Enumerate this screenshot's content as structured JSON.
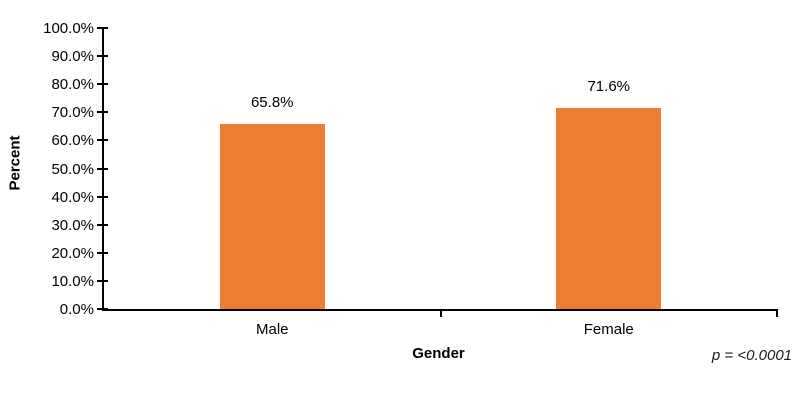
{
  "chart_data": {
    "type": "bar",
    "title": "",
    "categories": [
      "Male",
      "Female"
    ],
    "values": [
      65.8,
      71.6
    ],
    "value_labels": [
      "65.8%",
      "71.6%"
    ],
    "series": [
      {
        "name": "Percent",
        "values": [
          65.8,
          71.6
        ]
      }
    ],
    "xlabel": "Gender",
    "ylabel": "Percent",
    "ylim": [
      0,
      100
    ],
    "yticks": [
      {
        "value": 0,
        "label": "0.0%"
      },
      {
        "value": 10,
        "label": "10.0%"
      },
      {
        "value": 20,
        "label": "20.0%"
      },
      {
        "value": 30,
        "label": "30.0%"
      },
      {
        "value": 40,
        "label": "40.0%"
      },
      {
        "value": 50,
        "label": "50.0%"
      },
      {
        "value": 60,
        "label": "60.0%"
      },
      {
        "value": 70,
        "label": "70.0%"
      },
      {
        "value": 80,
        "label": "80.0%"
      },
      {
        "value": 90,
        "label": "90.0%"
      },
      {
        "value": 100,
        "label": "100.0%"
      }
    ],
    "annotation": "p = <0.0001",
    "bar_color": "#ED7D31",
    "axis_color": "#000000",
    "grid": false,
    "legend": "none"
  }
}
